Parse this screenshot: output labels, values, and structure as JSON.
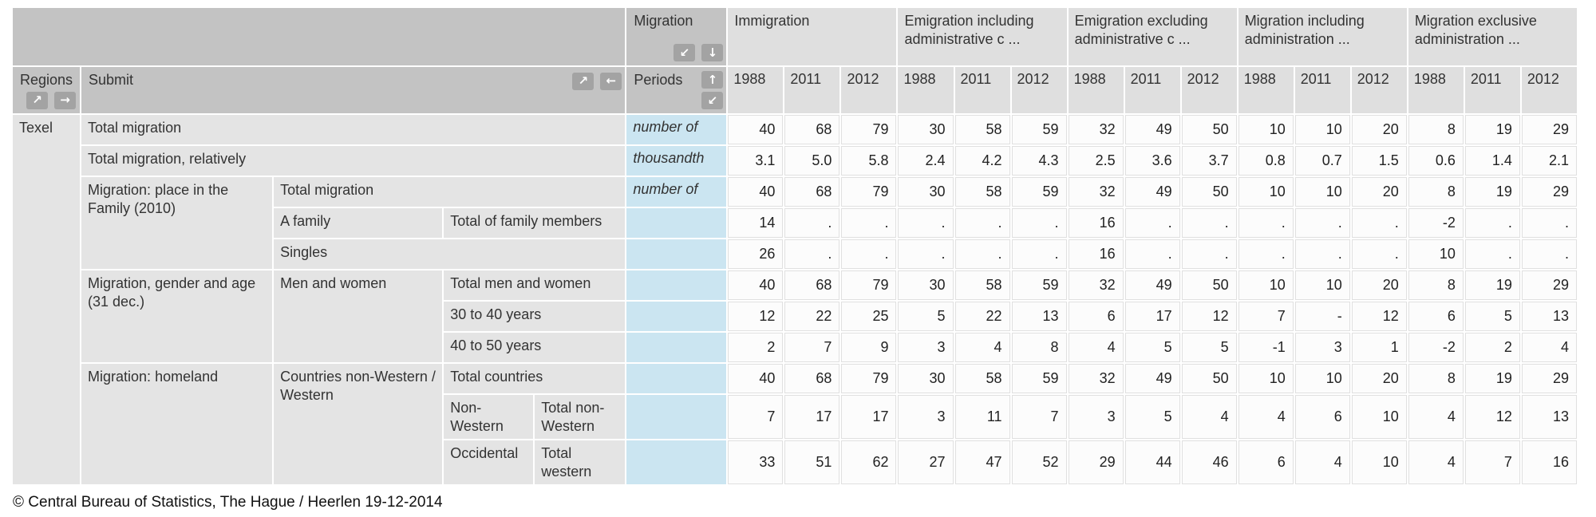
{
  "header": {
    "migration": {
      "label": "Migration"
    },
    "regions": {
      "label": "Regions"
    },
    "submit": {
      "label": "Submit"
    },
    "periods": {
      "label": "Periods"
    },
    "groups": [
      {
        "label": "Immigration"
      },
      {
        "label": "Emigration including administrative c ..."
      },
      {
        "label": "Emigration excluding administrative c ..."
      },
      {
        "label": "Migration including administration ..."
      },
      {
        "label": "Migration exclusive administration ..."
      }
    ],
    "years": [
      "1988",
      "2011",
      "2012"
    ]
  },
  "icons": {
    "arrow_down_left": "↙",
    "arrow_down": "↓",
    "arrow_up_right": "↗",
    "arrow_right": "→",
    "arrow_up": "↑",
    "arrow_left": "←"
  },
  "body": {
    "region": {
      "label": "Texel",
      "rowspan": 11
    },
    "rows": [
      {
        "stubs": [
          {
            "text": "Total migration",
            "colspan": 4
          }
        ],
        "unit": "number of",
        "values": [
          "40",
          "68",
          "79",
          "30",
          "58",
          "59",
          "32",
          "49",
          "50",
          "10",
          "10",
          "20",
          "8",
          "19",
          "29"
        ]
      },
      {
        "stubs": [
          {
            "text": "Total migration, relatively",
            "colspan": 4
          }
        ],
        "unit": "thousandth",
        "values": [
          "3.1",
          "5.0",
          "5.8",
          "2.4",
          "4.2",
          "4.3",
          "2.5",
          "3.6",
          "3.7",
          "0.8",
          "0.7",
          "1.5",
          "0.6",
          "1.4",
          "2.1"
        ]
      },
      {
        "stubs": [
          {
            "text": "Migration: place in the Family (2010)",
            "rowspan": 3
          },
          {
            "text": "Total migration",
            "colspan": 3
          }
        ],
        "unit": "number of",
        "values": [
          "40",
          "68",
          "79",
          "30",
          "58",
          "59",
          "32",
          "49",
          "50",
          "10",
          "10",
          "20",
          "8",
          "19",
          "29"
        ]
      },
      {
        "stubs": [
          {
            "text": "A family"
          },
          {
            "text": "Total of family members",
            "colspan": 2
          }
        ],
        "unit": "",
        "values": [
          "14",
          ".",
          ".",
          ".",
          ".",
          ".",
          "16",
          ".",
          ".",
          ".",
          ".",
          ".",
          "-2",
          ".",
          "."
        ]
      },
      {
        "stubs": [
          {
            "text": "Singles",
            "colspan": 3
          }
        ],
        "unit": "",
        "values": [
          "26",
          ".",
          ".",
          ".",
          ".",
          ".",
          "16",
          ".",
          ".",
          ".",
          ".",
          ".",
          "10",
          ".",
          "."
        ]
      },
      {
        "stubs": [
          {
            "text": "Migration, gender and age (31 dec.)",
            "rowspan": 3
          },
          {
            "text": "Men and women",
            "rowspan": 3
          },
          {
            "text": "Total men and women",
            "colspan": 2
          }
        ],
        "unit": "",
        "values": [
          "40",
          "68",
          "79",
          "30",
          "58",
          "59",
          "32",
          "49",
          "50",
          "10",
          "10",
          "20",
          "8",
          "19",
          "29"
        ]
      },
      {
        "stubs": [
          {
            "text": "30 to 40 years",
            "colspan": 2
          }
        ],
        "unit": "",
        "values": [
          "12",
          "22",
          "25",
          "5",
          "22",
          "13",
          "6",
          "17",
          "12",
          "7",
          "-",
          "12",
          "6",
          "5",
          "13"
        ]
      },
      {
        "stubs": [
          {
            "text": "40 to 50 years",
            "colspan": 2
          }
        ],
        "unit": "",
        "values": [
          "2",
          "7",
          "9",
          "3",
          "4",
          "8",
          "4",
          "5",
          "5",
          "-1",
          "3",
          "1",
          "-2",
          "2",
          "4"
        ]
      },
      {
        "stubs": [
          {
            "text": "Migration: homeland",
            "rowspan": 3
          },
          {
            "text": "Countries non-Western / Western",
            "rowspan": 3
          },
          {
            "text": "Total countries",
            "colspan": 2
          }
        ],
        "unit": "",
        "values": [
          "40",
          "68",
          "79",
          "30",
          "58",
          "59",
          "32",
          "49",
          "50",
          "10",
          "10",
          "20",
          "8",
          "19",
          "29"
        ]
      },
      {
        "stubs": [
          {
            "text": "Non-Western"
          },
          {
            "text": "Total non-Western"
          }
        ],
        "unit": "",
        "values": [
          "7",
          "17",
          "17",
          "3",
          "11",
          "7",
          "3",
          "5",
          "4",
          "4",
          "6",
          "10",
          "4",
          "12",
          "13"
        ]
      },
      {
        "stubs": [
          {
            "text": "Occidental"
          },
          {
            "text": "Total western"
          }
        ],
        "unit": "",
        "values": [
          "33",
          "51",
          "62",
          "27",
          "47",
          "52",
          "29",
          "44",
          "46",
          "6",
          "4",
          "10",
          "4",
          "7",
          "16"
        ]
      }
    ]
  },
  "footer": "© Central Bureau of Statistics, The Hague / Heerlen 19-12-2014",
  "colors": {
    "header_dark": "#c3c3c3",
    "header_light": "#dfdfdf",
    "stub_bg": "#e4e4e4",
    "unit_bg": "#cbe5f1",
    "cell_bg": "#fcfcfc",
    "icon_button_bg": "#a3a3a3"
  }
}
